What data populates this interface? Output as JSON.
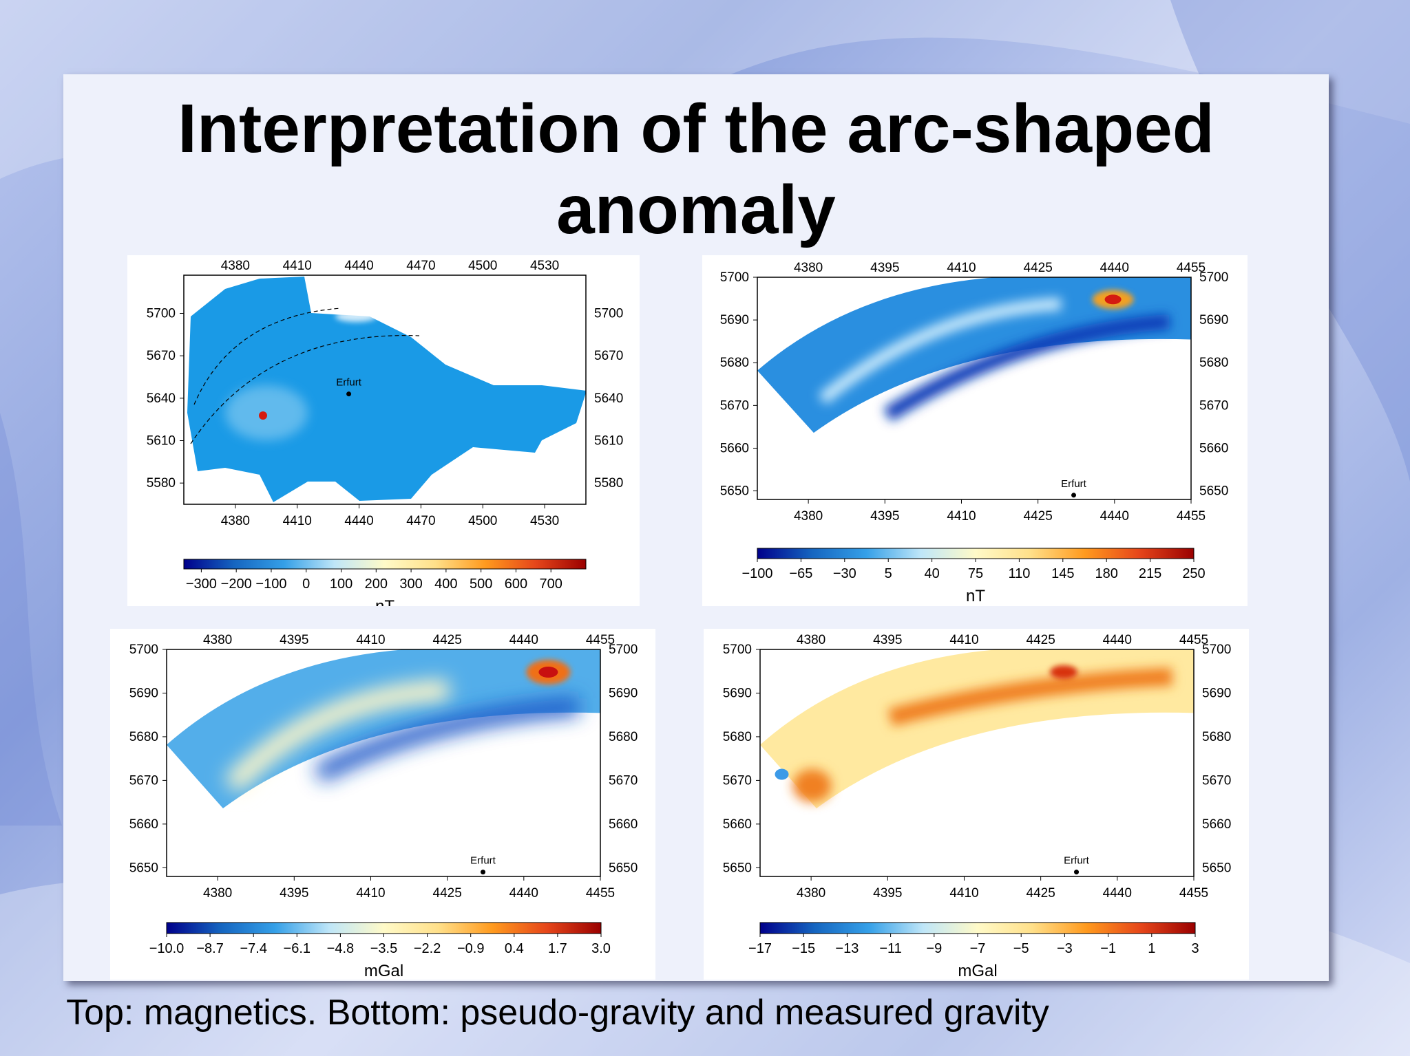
{
  "slide": {
    "title_line1": "Interpretation of the arc-shaped",
    "title_line2": "anomaly",
    "caption": "Top: magnetics. Bottom: pseudo-gravity and measured gravity"
  },
  "colors": {
    "background_blue": "#8ea3de",
    "panel": "#eef1fb",
    "map_blue": "#1a9ae6",
    "anomaly_red": "#d41a10",
    "colorbar_stops": [
      "#00008b",
      "#1565c0",
      "#35a0e8",
      "#bfe6f8",
      "#fffac8",
      "#ffe08a",
      "#ff9a1e",
      "#e6461a",
      "#9a0000"
    ]
  },
  "chart_data": [
    {
      "type": "heatmap",
      "panel": "top-left",
      "title": "",
      "x_ticks": [
        "4380",
        "4410",
        "4440",
        "4470",
        "4500",
        "4530"
      ],
      "y_ticks": [
        "5700",
        "5670",
        "5640",
        "5610",
        "5580"
      ],
      "xlim": [
        4355,
        4550
      ],
      "ylim": [
        5565,
        5727
      ],
      "label": "Erfurt",
      "marker": {
        "x": 4435,
        "y": 5643
      },
      "colorbar_ticks": [
        "−300",
        "−200",
        "−100",
        "0",
        "100",
        "200",
        "300",
        "400",
        "500",
        "600",
        "700"
      ],
      "colorbar_range": [
        -350,
        700
      ],
      "colorbar_unit": "nT"
    },
    {
      "type": "heatmap",
      "panel": "top-right",
      "title": "",
      "x_ticks": [
        "4380",
        "4395",
        "4410",
        "4425",
        "4440",
        "4455"
      ],
      "y_ticks": [
        "5700",
        "5690",
        "5680",
        "5670",
        "5660",
        "5650"
      ],
      "xlim": [
        4370,
        4455
      ],
      "ylim": [
        5648,
        5700
      ],
      "label": "Erfurt",
      "marker": {
        "x": 4432,
        "y": 5649
      },
      "colorbar_ticks": [
        "−100",
        "−65",
        "−30",
        "5",
        "40",
        "75",
        "110",
        "145",
        "180",
        "215",
        "250"
      ],
      "colorbar_range": [
        -100,
        250
      ],
      "colorbar_unit": "nT"
    },
    {
      "type": "heatmap",
      "panel": "bottom-left",
      "title": "",
      "x_ticks": [
        "4380",
        "4395",
        "4410",
        "4425",
        "4440",
        "4455"
      ],
      "y_ticks": [
        "5700",
        "5690",
        "5680",
        "5670",
        "5660",
        "5650"
      ],
      "xlim": [
        4370,
        4455
      ],
      "ylim": [
        5648,
        5700
      ],
      "label": "Erfurt",
      "marker": {
        "x": 4432,
        "y": 5649
      },
      "colorbar_ticks": [
        "−10.0",
        "−8.7",
        "−7.4",
        "−6.1",
        "−4.8",
        "−3.5",
        "−2.2",
        "−0.9",
        "0.4",
        "1.7",
        "3.0"
      ],
      "colorbar_range": [
        -10,
        3
      ],
      "colorbar_unit": "mGal"
    },
    {
      "type": "heatmap",
      "panel": "bottom-right",
      "title": "",
      "x_ticks": [
        "4380",
        "4395",
        "4410",
        "4425",
        "4440",
        "4455"
      ],
      "y_ticks": [
        "5700",
        "5690",
        "5680",
        "5670",
        "5660",
        "5650"
      ],
      "xlim": [
        4370,
        4455
      ],
      "ylim": [
        5648,
        5700
      ],
      "label": "Erfurt",
      "marker": {
        "x": 4432,
        "y": 5649
      },
      "colorbar_ticks": [
        "−17",
        "−15",
        "−13",
        "−11",
        "−9",
        "−7",
        "−5",
        "−3",
        "−1",
        "1",
        "3"
      ],
      "colorbar_range": [
        -17,
        3
      ],
      "colorbar_unit": "mGal"
    }
  ]
}
